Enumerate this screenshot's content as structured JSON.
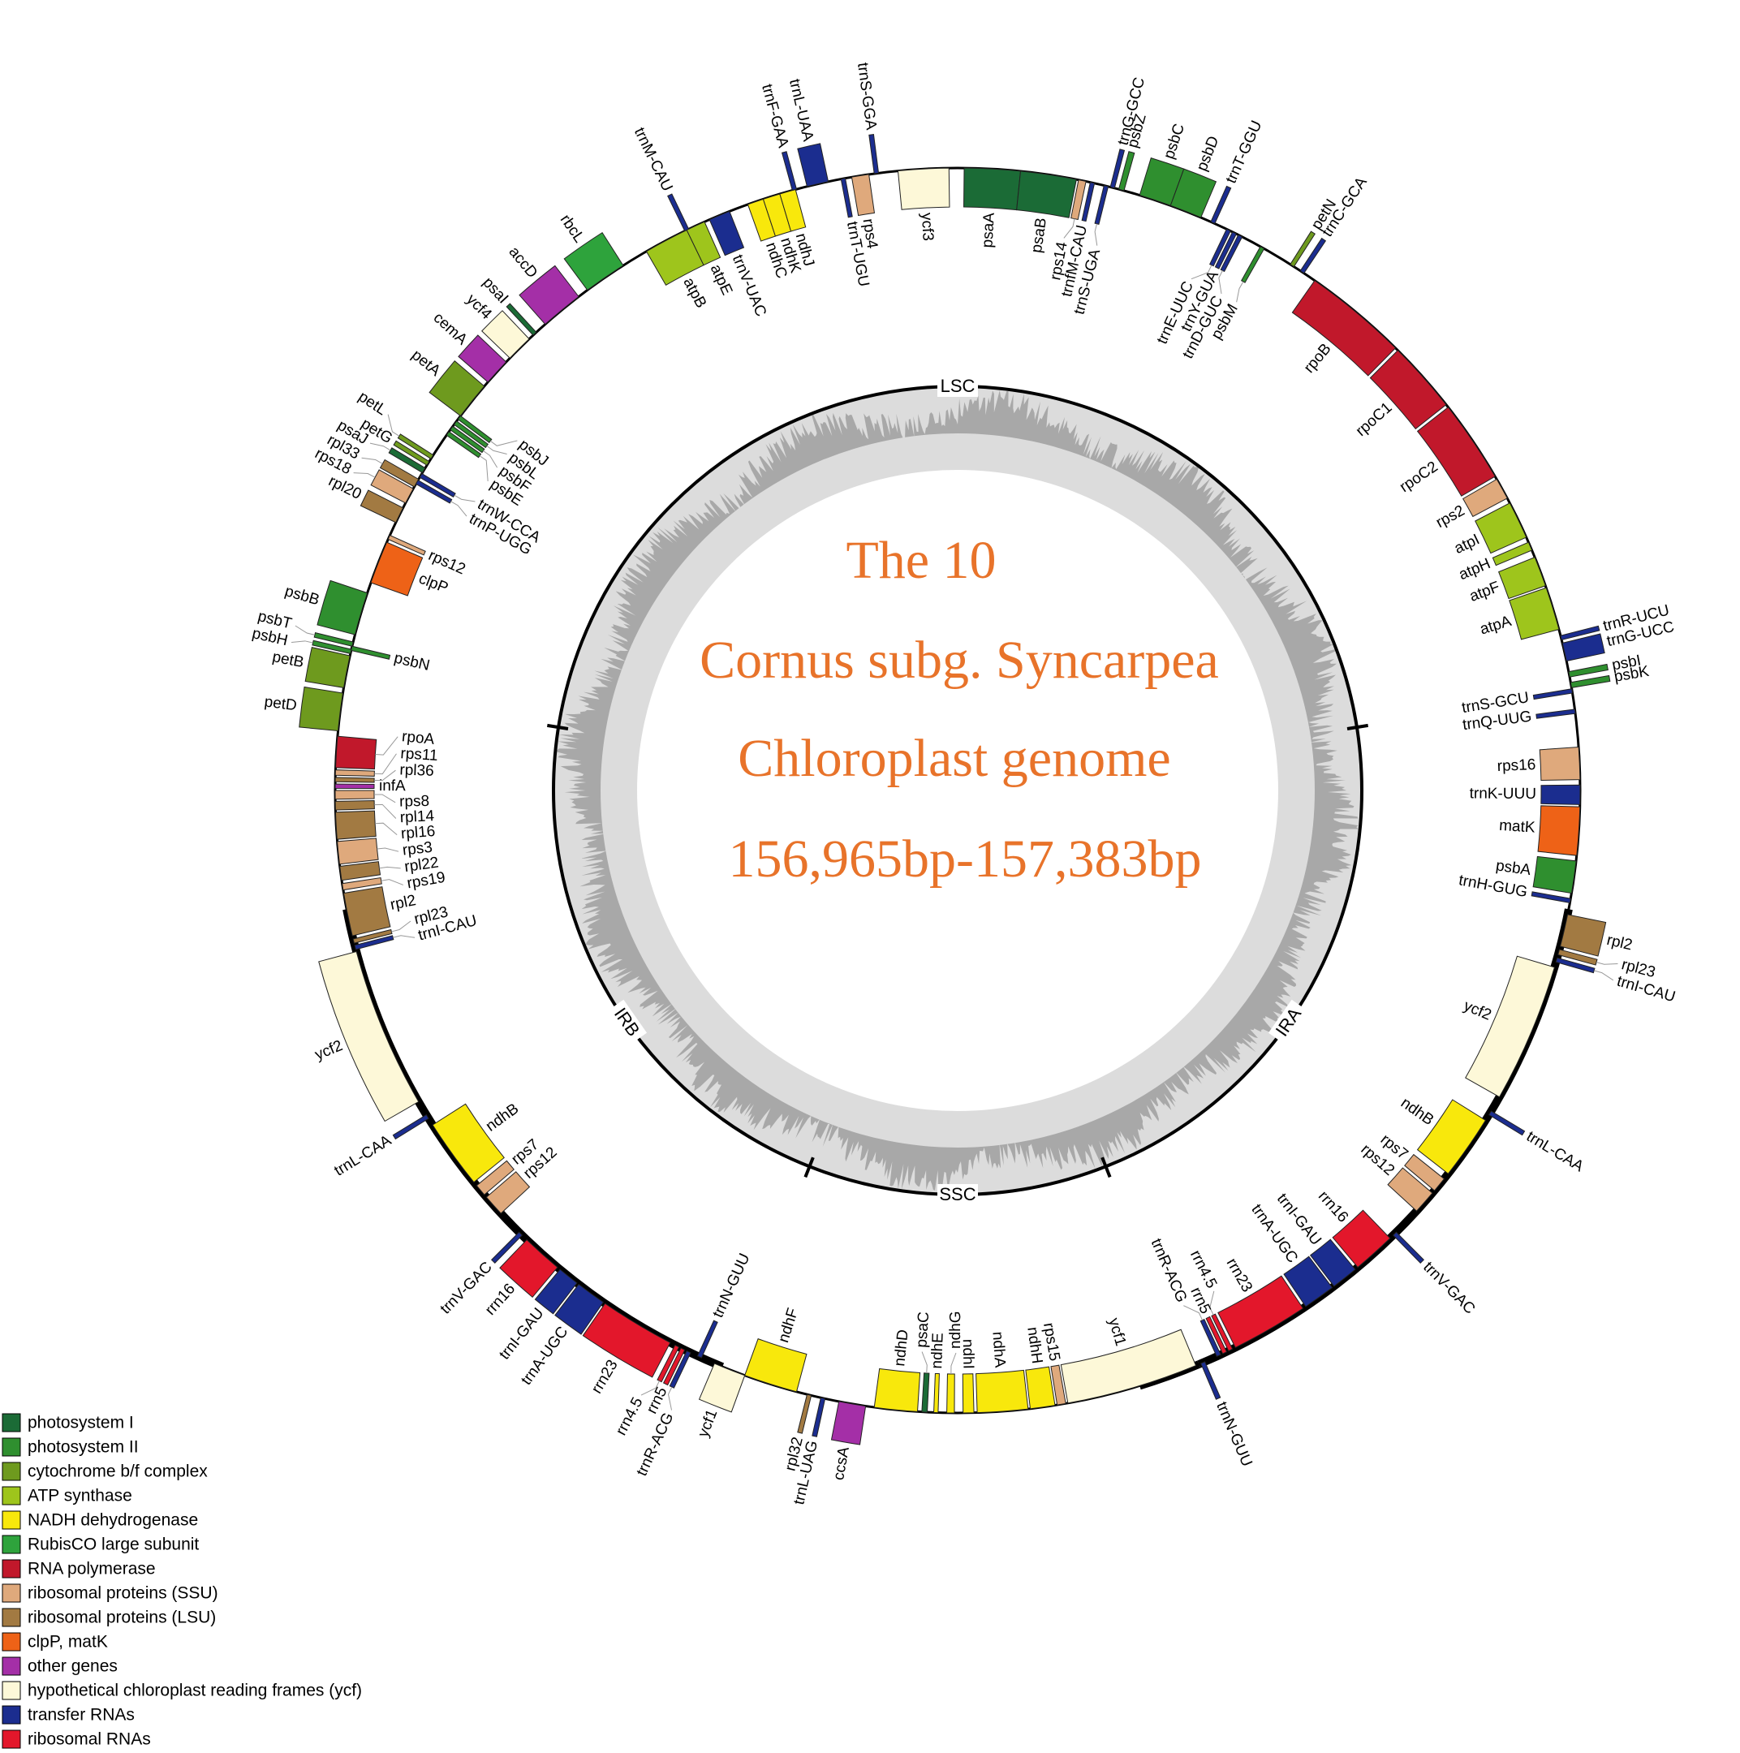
{
  "title": [
    "The 10",
    "Cornus subg. Syncarpea",
    "Chloroplast genome",
    "156,965bp-157,383bp"
  ],
  "regions": [
    "LSC",
    "IRB",
    "SSC",
    "IRA"
  ],
  "genes": [
    "psaA",
    "psaB",
    "rps14",
    "trnfM-CAU",
    "trnS-UGA",
    "trnG-GCC",
    "psbZ",
    "psbC",
    "psbD",
    "trnT-GGU",
    "trnE-UUC",
    "trnY-GUA",
    "trnD-GUC",
    "psbM",
    "petN",
    "trnC-GCA",
    "rpoB",
    "rpoC1",
    "rpoC2",
    "rps2",
    "atpI",
    "atpH",
    "atpF",
    "atpA",
    "trnR-UCU",
    "trnG-UCC",
    "psbI",
    "psbK",
    "trnS-GCU",
    "trnQ-UUG",
    "rps16",
    "trnK-UUU",
    "matK",
    "psbA",
    "trnH-GUG",
    "rpl2",
    "rpl23",
    "trnI-CAU",
    "ycf2",
    "trnL-CAA",
    "ndhB",
    "rps7",
    "rps12",
    "trnV-GAC",
    "rrn16",
    "trnI-GAU",
    "trnA-UGC",
    "rrn23",
    "rrn4.5",
    "rrn5",
    "trnR-ACG",
    "trnN-GUU",
    "ycf1",
    "rps15",
    "ndhH",
    "ndhA",
    "ndhI",
    "ndhG",
    "ndhE",
    "psaC",
    "ndhD",
    "ccsA",
    "trnL-UAG",
    "rpl32",
    "ndhF",
    "ycf1",
    "trnN-GUU",
    "trnR-ACG",
    "rrn5",
    "rrn4.5",
    "rrn23",
    "trnA-UGC",
    "trnI-GAU",
    "rrn16",
    "trnV-GAC",
    "rps12",
    "rps7",
    "ndhB",
    "trnL-CAA",
    "ycf2",
    "trnI-CAU",
    "rpl23",
    "rpl2",
    "rps19",
    "rpl22",
    "rps3",
    "rpl16",
    "rpl14",
    "rps8",
    "infA",
    "rpl36",
    "rps11",
    "rpoA",
    "petD",
    "petB",
    "psbN",
    "psbH",
    "psbT",
    "psbB",
    "clpP",
    "rps12",
    "rpl20",
    "rps18",
    "rpl33",
    "trnP-UGG",
    "trnW-CCA",
    "psaJ",
    "petG",
    "petL",
    "psbE",
    "psbF",
    "psbL",
    "psbJ",
    "petA",
    "cemA",
    "ycf4",
    "psaI",
    "accD",
    "rbcL",
    "atpB",
    "trnM-CAU",
    "atpE",
    "trnV-UAC",
    "ndhC",
    "ndhK",
    "ndhJ",
    "trnF-GAA",
    "trnL-UAA",
    "trnT-UGU",
    "rps4",
    "trnS-GGA",
    "ycf3"
  ],
  "legend": [
    {
      "label": "photosystem I",
      "color": "#1b6b36"
    },
    {
      "label": "photosystem II",
      "color": "#2f8f2f"
    },
    {
      "label": "cytochrome b/f complex",
      "color": "#6e9a1e"
    },
    {
      "label": "ATP synthase",
      "color": "#9ec51c"
    },
    {
      "label": "NADH dehydrogenase",
      "color": "#f8e80c"
    },
    {
      "label": "RubisCO large subunit",
      "color": "#2ea33c"
    },
    {
      "label": "RNA polymerase",
      "color": "#c1182b"
    },
    {
      "label": "ribosomal proteins (SSU)",
      "color": "#dfa97c"
    },
    {
      "label": "ribosomal proteins (LSU)",
      "color": "#a27a42"
    },
    {
      "label": "clpP, matK",
      "color": "#ee6217"
    },
    {
      "label": "other genes",
      "color": "#a42fa7"
    },
    {
      "label": "hypothetical chloroplast reading frames (ycf)",
      "color": "#fdf8d8"
    },
    {
      "label": "transfer RNAs",
      "color": "#1b2d8f"
    },
    {
      "label": "ribosomal RNAs",
      "color": "#e3172b"
    }
  ]
}
